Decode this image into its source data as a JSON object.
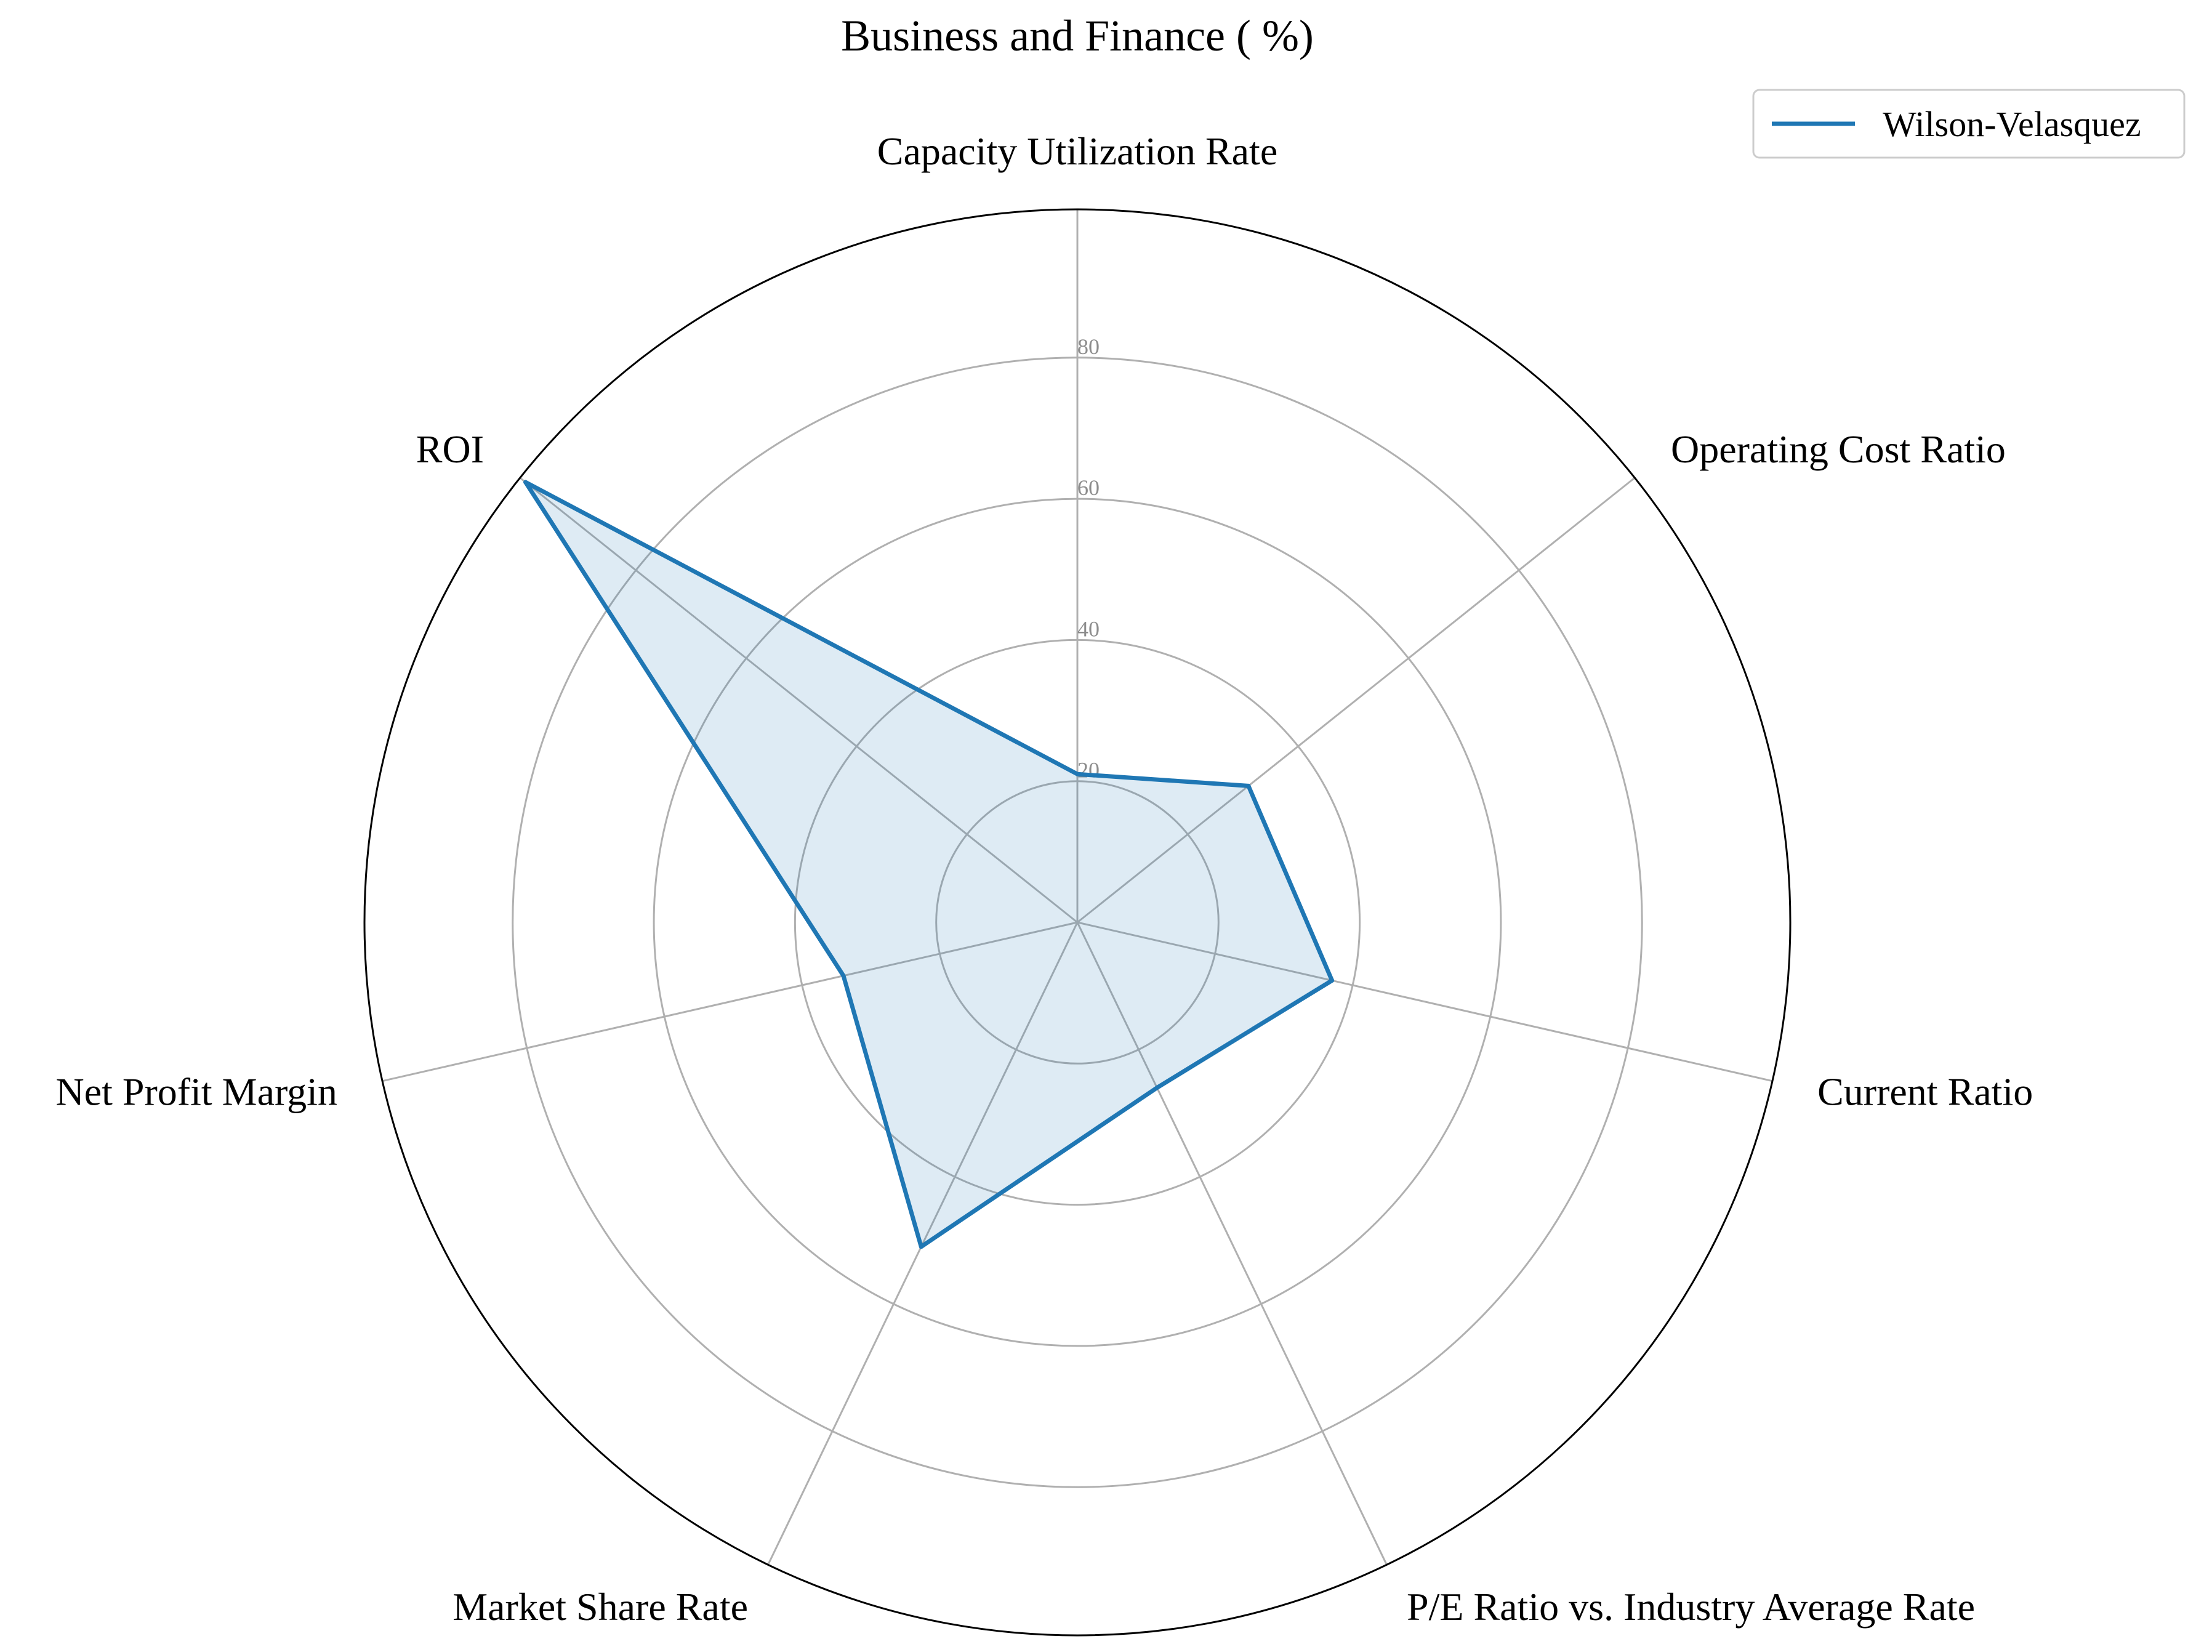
{
  "chart_data": {
    "type": "radar",
    "title": "Business and Finance ( %)",
    "categories": [
      "Capacity Utilization Rate",
      "Operating Cost Ratio",
      "Current Ratio",
      "P/E Ratio vs. Industry Average Rate",
      "Market Share Rate",
      "Net Profit Margin",
      "ROI"
    ],
    "series": [
      {
        "name": "Wilson-Velasquez",
        "values": [
          21,
          31,
          37,
          26,
          51,
          34,
          100
        ],
        "color": "#1f77b4"
      }
    ],
    "rlim": [
      0,
      101
    ],
    "rticks": [
      20,
      40,
      60,
      80
    ],
    "rtick_labels": [
      "20",
      "40",
      "60",
      "80"
    ],
    "grid": true,
    "legend": "top-right"
  }
}
